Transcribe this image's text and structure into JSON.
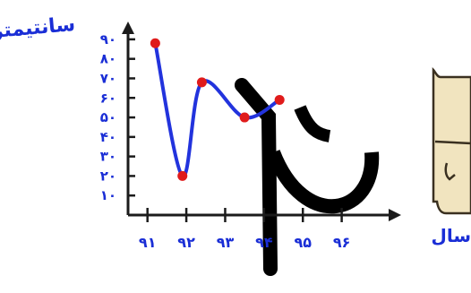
{
  "chart_data": {
    "type": "line",
    "title": "",
    "ylabel": "سانتیمتر",
    "xlabel": "سال",
    "x_tick_labels": [
      "۹۱",
      "۹۲",
      "۹۳",
      "۹۴",
      "۹۵",
      "۹۶"
    ],
    "y_tick_labels": [
      "۱۰",
      "۲۰",
      "۳۰",
      "۴۰",
      "۵۰",
      "۶۰",
      "۷۰",
      "۸۰",
      "۹۰"
    ],
    "x_ticks": [
      91,
      92,
      93,
      94,
      95,
      96
    ],
    "y_ticks": [
      10,
      20,
      30,
      40,
      50,
      60,
      70,
      80,
      90
    ],
    "xlim": [
      90.5,
      97.3
    ],
    "ylim": [
      0,
      95
    ],
    "grid": false,
    "series": [
      {
        "x": [
          91.2,
          91.9,
          92.4,
          93.5,
          94.4
        ],
        "y": [
          88,
          20,
          68,
          50,
          59
        ]
      }
    ],
    "marked_points": [
      {
        "x": 91.2,
        "y": 88
      },
      {
        "x": 91.9,
        "y": 20
      },
      {
        "x": 92.4,
        "y": 68
      },
      {
        "x": 93.5,
        "y": 50
      },
      {
        "x": 94.4,
        "y": 59
      }
    ],
    "colors": {
      "axis": "#1b1b1b",
      "line": "#2233dd",
      "marker": "#e01b1b",
      "text": "#1a2ed6",
      "side_note_fill": "#f1e4bf",
      "side_note_stroke": "#3a3020",
      "watermark": "#000000"
    }
  }
}
